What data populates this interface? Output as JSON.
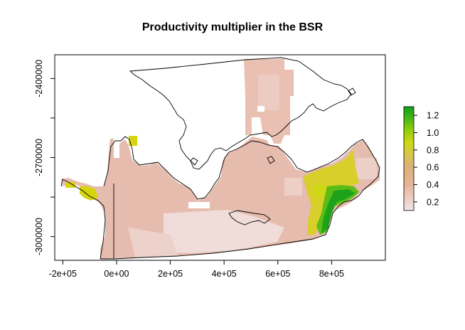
{
  "title": "Productivity multiplier in the BSR",
  "x_axis": {
    "ticks": [
      {
        "value": -200000,
        "label": "-2e+05"
      },
      {
        "value": 0,
        "label": "0e+00"
      },
      {
        "value": 200000,
        "label": "2e+05"
      },
      {
        "value": 400000,
        "label": "4e+05"
      },
      {
        "value": 600000,
        "label": "6e+05"
      },
      {
        "value": 800000,
        "label": "8e+05"
      }
    ],
    "range": [
      -230000,
      1000000
    ]
  },
  "y_axis": {
    "ticks": [
      {
        "value": -2400000,
        "label": "-2400000"
      },
      {
        "value": -2700000,
        "label": "-2700000"
      },
      {
        "value": -3000000,
        "label": "-3000000"
      }
    ],
    "minor_ticks": [
      -2550000,
      -2850000
    ],
    "range": [
      -3090000,
      -2310000
    ]
  },
  "legend": {
    "ticks": [
      {
        "value": 1.2,
        "label": "1.2"
      },
      {
        "value": 1.0,
        "label": "1.0"
      },
      {
        "value": 0.8,
        "label": "0.8"
      },
      {
        "value": 0.6,
        "label": "0.6"
      },
      {
        "value": 0.4,
        "label": "0.4"
      },
      {
        "value": 0.2,
        "label": "0.2"
      }
    ],
    "range": [
      0.1,
      1.3
    ],
    "colors": [
      "#f2e5ea",
      "#ecc9bd",
      "#e6b396",
      "#dbb27a",
      "#d6c74a",
      "#cfd814",
      "#8fcc0e",
      "#3fb416",
      "#11a01c"
    ]
  },
  "colors": {
    "base": "#e8bcae",
    "light": "#f0dcd8",
    "yellow": "#d9d21a",
    "green": "#2fa81a"
  }
}
